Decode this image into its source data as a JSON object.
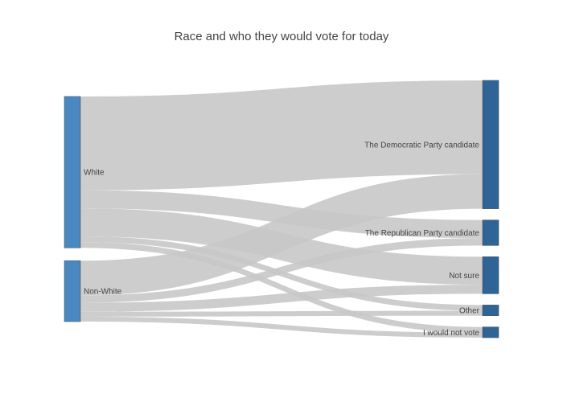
{
  "chart_data": {
    "type": "sankey",
    "title": "Race and who they would vote for today",
    "sources": [
      "White",
      "Non-White"
    ],
    "targets": [
      "The Democratic Party candidate",
      "The Republican Party candidate",
      "Not sure",
      "Other",
      "I would not vote"
    ],
    "links": [
      {
        "source": "White",
        "target": "The Democratic Party candidate",
        "value": 114
      },
      {
        "source": "White",
        "target": "The Republican Party candidate",
        "value": 22
      },
      {
        "source": "White",
        "target": "Not sure",
        "value": 34
      },
      {
        "source": "White",
        "target": "Other",
        "value": 7
      },
      {
        "source": "White",
        "target": "I would not vote",
        "value": 7
      },
      {
        "source": "Non-White",
        "target": "The Democratic Party candidate",
        "value": 42
      },
      {
        "source": "Non-White",
        "target": "The Republican Party candidate",
        "value": 9
      },
      {
        "source": "Non-White",
        "target": "Not sure",
        "value": 11
      },
      {
        "source": "Non-White",
        "target": "Other",
        "value": 6
      },
      {
        "source": "Non-White",
        "target": "I would not vote",
        "value": 6
      }
    ],
    "colors": {
      "source_node": "#4a89c0",
      "target_node": "#2f6596",
      "node_border": "#444444",
      "link": "#c8c8c8"
    }
  }
}
